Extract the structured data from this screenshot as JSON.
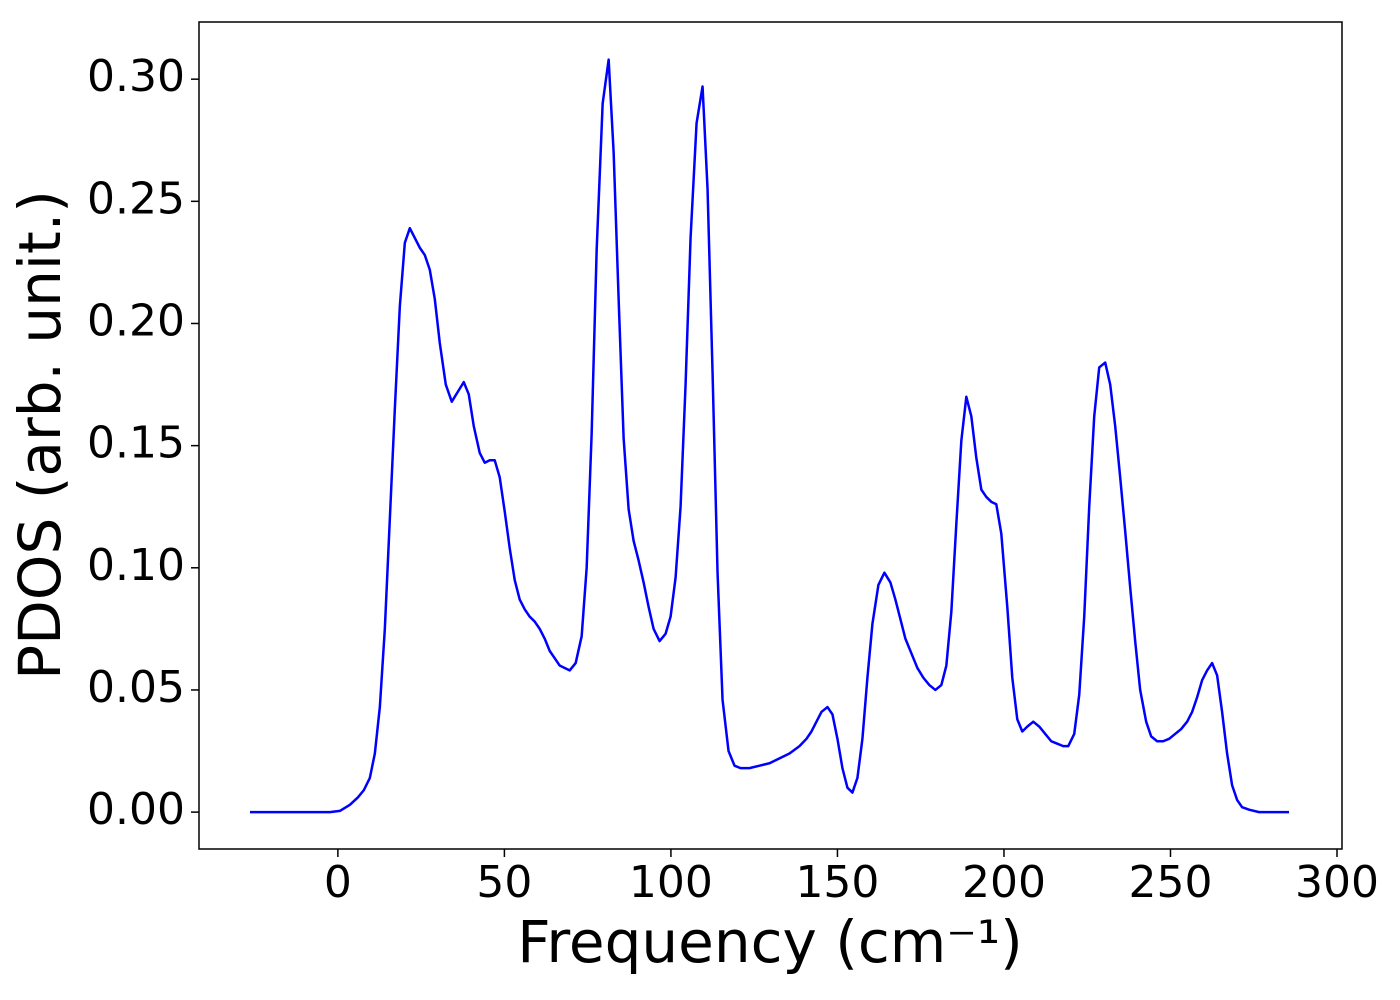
{
  "chart_data": {
    "type": "line",
    "xlabel": "Frequency (cm⁻¹)",
    "ylabel": "PDOS (arb. unit.)",
    "xlim": [
      -41.7,
      301.5
    ],
    "ylim": [
      -0.0151,
      0.3234
    ],
    "xticks": [
      0,
      50,
      100,
      150,
      200,
      250,
      300
    ],
    "yticks": [
      {
        "value": 0,
        "label": "0.00"
      },
      {
        "value": 0.05,
        "label": "0.05"
      },
      {
        "value": 0.1,
        "label": "0.10"
      },
      {
        "value": 0.15,
        "label": "0.15"
      },
      {
        "value": 0.2,
        "label": "0.20"
      },
      {
        "value": 0.25,
        "label": "0.25"
      },
      {
        "value": 0.3,
        "label": "0.30"
      }
    ],
    "x": [
      -26.4,
      -2.4,
      0.6,
      3.6,
      6,
      7.8,
      9.6,
      11.1,
      12.6,
      14.1,
      15.6,
      17.1,
      18.6,
      20.1,
      21.6,
      23.1,
      24.6,
      26.1,
      27.6,
      29.1,
      30.6,
      32.4,
      34.2,
      36,
      37.8,
      39.3,
      40.8,
      42.6,
      44.1,
      45.6,
      47.1,
      48.6,
      50.1,
      51.6,
      53.1,
      54.6,
      56.1,
      57.6,
      59.1,
      60.6,
      62.1,
      63.6,
      65.1,
      66.6,
      68.1,
      69.6,
      71.4,
      73.2,
      74.7,
      76.2,
      77.7,
      79.5,
      81.3,
      82.8,
      84.3,
      85.8,
      87.3,
      88.8,
      90.3,
      91.8,
      93.3,
      94.8,
      96.6,
      98.4,
      99.9,
      101.4,
      102.9,
      104.4,
      105.9,
      107.7,
      109.5,
      111,
      112.5,
      114,
      115.5,
      117.3,
      119.1,
      120.9,
      123.6,
      126.6,
      129.6,
      132.6,
      135.6,
      138.6,
      140.7,
      142.2,
      143.7,
      145.2,
      147,
      148.5,
      150,
      151.5,
      153,
      154.5,
      156,
      157.5,
      159,
      160.5,
      162.3,
      164.1,
      165.9,
      167.4,
      168.9,
      170.4,
      172.2,
      174,
      175.8,
      177.6,
      179.4,
      181.2,
      182.7,
      184.2,
      185.7,
      187.2,
      188.7,
      190.2,
      191.7,
      193.2,
      194.7,
      196.2,
      197.7,
      199.2,
      201,
      202.5,
      204,
      205.5,
      207,
      208.8,
      210.6,
      212.4,
      214.2,
      216,
      217.8,
      219.3,
      221.1,
      222.6,
      224.1,
      225.6,
      227.1,
      228.6,
      230.4,
      231.9,
      233.4,
      234.9,
      236.4,
      237.9,
      239.4,
      240.9,
      242.7,
      244.2,
      246,
      247.8,
      249.6,
      251.4,
      253.2,
      255,
      256.5,
      258,
      259.5,
      261,
      262.5,
      264,
      265.5,
      267,
      268.5,
      270,
      271.5,
      273.6,
      276.6,
      285.6
    ],
    "series": [
      {
        "color": "#0000ff",
        "values": [
          0,
          0,
          0.0005,
          0.003,
          0.006,
          0.009,
          0.014,
          0.024,
          0.043,
          0.075,
          0.12,
          0.165,
          0.207,
          0.233,
          0.239,
          0.235,
          0.231,
          0.228,
          0.222,
          0.21,
          0.192,
          0.175,
          0.168,
          0.172,
          0.176,
          0.171,
          0.158,
          0.147,
          0.143,
          0.144,
          0.144,
          0.137,
          0.123,
          0.108,
          0.095,
          0.087,
          0.083,
          0.08,
          0.078,
          0.075,
          0.071,
          0.066,
          0.063,
          0.06,
          0.059,
          0.058,
          0.061,
          0.072,
          0.1,
          0.155,
          0.23,
          0.29,
          0.308,
          0.27,
          0.21,
          0.153,
          0.124,
          0.111,
          0.103,
          0.094,
          0.084,
          0.075,
          0.07,
          0.073,
          0.08,
          0.096,
          0.125,
          0.175,
          0.235,
          0.282,
          0.297,
          0.255,
          0.18,
          0.098,
          0.046,
          0.025,
          0.019,
          0.018,
          0.018,
          0.019,
          0.02,
          0.022,
          0.024,
          0.027,
          0.03,
          0.033,
          0.037,
          0.041,
          0.043,
          0.04,
          0.03,
          0.018,
          0.01,
          0.008,
          0.014,
          0.03,
          0.055,
          0.077,
          0.093,
          0.098,
          0.094,
          0.087,
          0.079,
          0.071,
          0.065,
          0.059,
          0.055,
          0.052,
          0.05,
          0.052,
          0.06,
          0.082,
          0.118,
          0.152,
          0.17,
          0.162,
          0.145,
          0.132,
          0.129,
          0.127,
          0.126,
          0.114,
          0.084,
          0.055,
          0.038,
          0.033,
          0.035,
          0.037,
          0.035,
          0.032,
          0.029,
          0.028,
          0.027,
          0.027,
          0.032,
          0.048,
          0.08,
          0.125,
          0.162,
          0.182,
          0.184,
          0.175,
          0.158,
          0.137,
          0.115,
          0.092,
          0.07,
          0.05,
          0.037,
          0.031,
          0.029,
          0.029,
          0.03,
          0.032,
          0.034,
          0.037,
          0.041,
          0.047,
          0.054,
          0.058,
          0.061,
          0.056,
          0.041,
          0.024,
          0.011,
          0.005,
          0.002,
          0.001,
          0,
          0
        ]
      }
    ]
  }
}
